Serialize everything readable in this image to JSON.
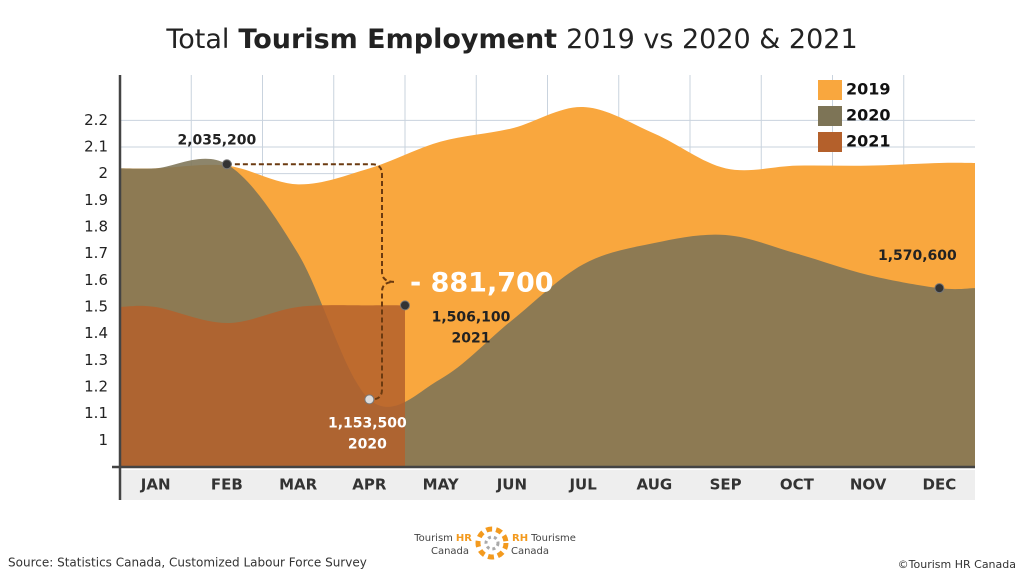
{
  "chart_data": {
    "type": "area",
    "title": {
      "prefix": "Total",
      "bold": "Tourism Employment",
      "suffix": "2019 vs 2020 & 2021"
    },
    "categories": [
      "JAN",
      "FEB",
      "MAR",
      "APR",
      "MAY",
      "JUN",
      "JUL",
      "AUG",
      "SEP",
      "OCT",
      "NOV",
      "DEC"
    ],
    "series": [
      {
        "name": "2019",
        "color": "#f9a73e",
        "values": [
          2.02,
          2.03,
          1.96,
          2.02,
          2.12,
          2.17,
          2.25,
          2.15,
          2.02,
          2.03,
          2.03,
          2.04
        ]
      },
      {
        "name": "2020",
        "color": "#7d7456",
        "values": [
          2.02,
          2.0352,
          1.7,
          1.1535,
          1.23,
          1.45,
          1.66,
          1.74,
          1.77,
          1.7,
          1.62,
          1.5706
        ],
        "value_labels": [
          null,
          "2,035,200",
          null,
          "1,153,500",
          null,
          null,
          null,
          null,
          null,
          null,
          null,
          "1,570,600"
        ]
      },
      {
        "name": "2021",
        "color": "#b4602b",
        "values": [
          1.5,
          1.44,
          1.5,
          1.5061,
          null,
          null,
          null,
          null,
          null,
          null,
          null,
          null
        ],
        "value_labels": [
          null,
          null,
          null,
          "1,506,100",
          null,
          null,
          null,
          null,
          null,
          null,
          null,
          null
        ]
      }
    ],
    "annotation": "- 881,700",
    "ylim": [
      0.9,
      2.37
    ],
    "yticks": [
      1,
      1.1,
      1.2,
      1.3,
      1.4,
      1.5,
      1.6,
      1.7,
      1.8,
      1.9,
      2,
      2.1,
      2.2
    ],
    "grid": true,
    "legend": "top-right"
  },
  "footer": {
    "source": "Source: Statistics Canada, Customized Labour Force Survey",
    "copyright": "©Tourism HR Canada",
    "logo": {
      "left_1": "Tourism",
      "left_hr": "HR",
      "left_2": "Canada",
      "right_rh": "RH",
      "right_1": "Tourisme",
      "right_2": "Canada"
    }
  }
}
